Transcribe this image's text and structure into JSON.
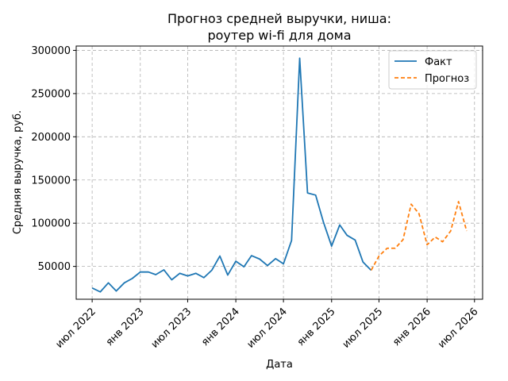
{
  "chart_data": {
    "type": "line",
    "title": [
      "Прогноз средней выручки, ниша:",
      "роутер wi-fi для дома"
    ],
    "xlabel": "Дата",
    "ylabel": "Средняя выручка, руб.",
    "ylim": [
      12000,
      305000
    ],
    "xlim": [
      "2022-05-01",
      "2026-08-01"
    ],
    "x_ticks": [
      {
        "date": "2022-07-01",
        "label": "июл 2022"
      },
      {
        "date": "2023-01-01",
        "label": "янв 2023"
      },
      {
        "date": "2023-07-01",
        "label": "июл 2023"
      },
      {
        "date": "2024-01-01",
        "label": "янв 2024"
      },
      {
        "date": "2024-07-01",
        "label": "июл 2024"
      },
      {
        "date": "2025-01-01",
        "label": "янв 2025"
      },
      {
        "date": "2025-07-01",
        "label": "июл 2025"
      },
      {
        "date": "2026-01-01",
        "label": "янв 2026"
      },
      {
        "date": "2026-07-01",
        "label": "июл 2026"
      }
    ],
    "y_ticks": [
      {
        "value": 50000,
        "label": "50000"
      },
      {
        "value": 100000,
        "label": "100000"
      },
      {
        "value": 150000,
        "label": "150000"
      },
      {
        "value": 200000,
        "label": "200000"
      },
      {
        "value": 250000,
        "label": "250000"
      },
      {
        "value": 300000,
        "label": "300000"
      }
    ],
    "grid": true,
    "legend_position": "top-right",
    "series": [
      {
        "name": "Факт",
        "color": "#1f77b4",
        "style": "solid",
        "points": [
          [
            "2022-07-01",
            25000
          ],
          [
            "2022-08-01",
            20500
          ],
          [
            "2022-09-01",
            31000
          ],
          [
            "2022-10-01",
            21500
          ],
          [
            "2022-11-01",
            31000
          ],
          [
            "2022-12-01",
            36000
          ],
          [
            "2023-01-01",
            43500
          ],
          [
            "2023-02-01",
            43500
          ],
          [
            "2023-03-01",
            40500
          ],
          [
            "2023-04-01",
            46000
          ],
          [
            "2023-05-01",
            34500
          ],
          [
            "2023-06-01",
            42000
          ],
          [
            "2023-07-01",
            39000
          ],
          [
            "2023-08-01",
            42000
          ],
          [
            "2023-09-01",
            37000
          ],
          [
            "2023-10-01",
            45500
          ],
          [
            "2023-11-01",
            62000
          ],
          [
            "2023-12-01",
            40000
          ],
          [
            "2024-01-01",
            56000
          ],
          [
            "2024-02-01",
            49500
          ],
          [
            "2024-03-01",
            62500
          ],
          [
            "2024-04-01",
            58500
          ],
          [
            "2024-05-01",
            51000
          ],
          [
            "2024-06-01",
            59000
          ],
          [
            "2024-07-01",
            53000
          ],
          [
            "2024-08-01",
            80000
          ],
          [
            "2024-09-01",
            291000
          ],
          [
            "2024-10-01",
            135000
          ],
          [
            "2024-11-01",
            132500
          ],
          [
            "2024-12-01",
            101000
          ],
          [
            "2025-01-01",
            73500
          ],
          [
            "2025-02-01",
            98000
          ],
          [
            "2025-03-01",
            86000
          ],
          [
            "2025-04-01",
            80500
          ],
          [
            "2025-05-01",
            55000
          ],
          [
            "2025-06-01",
            45500
          ]
        ]
      },
      {
        "name": "Прогноз",
        "color": "#ff7f0e",
        "style": "dashed",
        "points": [
          [
            "2025-06-01",
            45500
          ],
          [
            "2025-07-01",
            62000
          ],
          [
            "2025-08-01",
            71000
          ],
          [
            "2025-09-01",
            71000
          ],
          [
            "2025-10-01",
            81000
          ],
          [
            "2025-11-01",
            122000
          ],
          [
            "2025-12-01",
            111000
          ],
          [
            "2026-01-01",
            75000
          ],
          [
            "2026-02-01",
            84000
          ],
          [
            "2026-03-01",
            78500
          ],
          [
            "2026-04-01",
            91000
          ],
          [
            "2026-05-01",
            125000
          ],
          [
            "2026-06-01",
            91000
          ]
        ]
      }
    ]
  }
}
